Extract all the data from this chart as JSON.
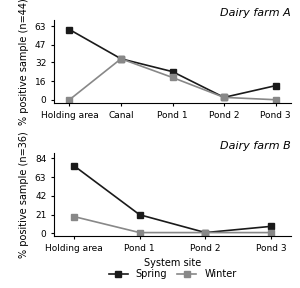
{
  "farm_a": {
    "title": "Dairy farm A",
    "ylabel": "% positive sample (n=44)",
    "sites": [
      "Holding area",
      "Canal",
      "Pond 1",
      "Pond 2",
      "Pond 3"
    ],
    "spring": [
      60,
      35,
      24,
      2,
      12
    ],
    "winter": [
      0,
      35,
      19,
      2,
      0
    ],
    "yticks": [
      0,
      16,
      32,
      47,
      63
    ],
    "ylim": [
      -3,
      68
    ]
  },
  "farm_b": {
    "title": "Dairy farm B",
    "ylabel": "% positive sample (n=36)",
    "xlabel": "System site",
    "sites": [
      "Holding area",
      "Pond 1",
      "Pond 2",
      "Pond 3"
    ],
    "spring": [
      76,
      21,
      1,
      8
    ],
    "winter": [
      19,
      1,
      1,
      1
    ],
    "yticks": [
      0,
      21,
      42,
      63,
      84
    ],
    "ylim": [
      -3,
      90
    ]
  },
  "spring_color": "#1a1a1a",
  "winter_color": "#888888",
  "spring_marker": "s",
  "winter_marker": "s",
  "spring_label": "Spring",
  "winter_label": "Winter",
  "title_fontsize": 8,
  "label_fontsize": 7,
  "tick_fontsize": 6.5,
  "legend_fontsize": 7,
  "line_width": 1.2,
  "marker_size": 5
}
